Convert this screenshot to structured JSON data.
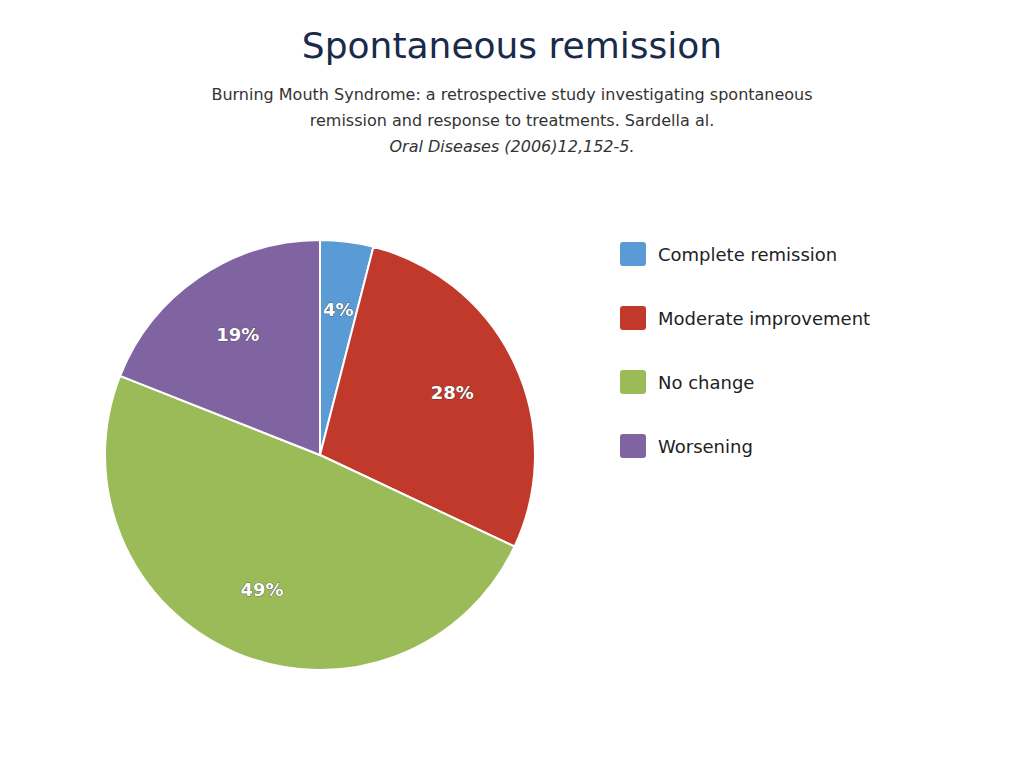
{
  "chart_data": {
    "type": "pie",
    "title": "Spontaneous remission",
    "subtitle": [
      "Burning Mouth Syndrome: a retrospective study investigating spontaneous",
      "remission and response to treatments. Sardella al.",
      "Oral Diseases (2006)12,152-5."
    ],
    "categories": [
      "Complete remission",
      "Moderate improvement",
      "No change",
      "Worsening"
    ],
    "values": [
      4,
      28,
      49,
      19
    ],
    "value_labels": [
      "4%",
      "28%",
      "49%",
      "19%"
    ],
    "colors": [
      "#5b9bd5",
      "#c0392b",
      "#9bbb59",
      "#8064a2"
    ],
    "data_labels": true,
    "legend": "right"
  }
}
